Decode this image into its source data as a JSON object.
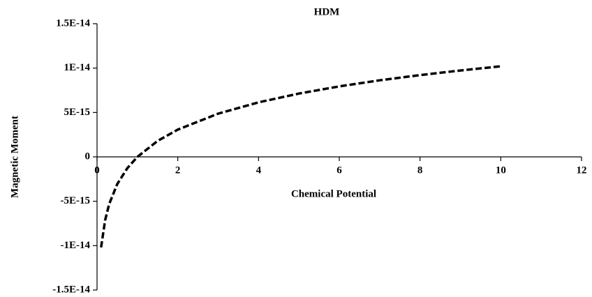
{
  "chart_data": {
    "type": "line",
    "title": "HDM",
    "xlabel": "Chemical Potential",
    "ylabel": "Magnetic Moment",
    "x": [
      0.1,
      0.2,
      0.3,
      0.5,
      0.75,
      1,
      1.5,
      2,
      3,
      4,
      5,
      6,
      7,
      8,
      9,
      10
    ],
    "values": [
      -1.02e-14,
      -7.13e-15,
      -5.33e-15,
      -3.07e-15,
      -1.27e-15,
      0,
      1.8e-15,
      3.07e-15,
      4.87e-15,
      6.14e-15,
      7.13e-15,
      7.94e-15,
      8.62e-15,
      9.21e-15,
      9.73e-15,
      1.02e-14
    ],
    "color": "#000000",
    "line_style": "dashed",
    "xlim": [
      0,
      12
    ],
    "xticks": [
      0,
      2,
      4,
      6,
      8,
      10,
      12
    ],
    "ylim": [
      -1.5e-14,
      1.5e-14
    ],
    "yticks": [
      {
        "value": -1.5e-14,
        "label": "-1.5E-14"
      },
      {
        "value": -1e-14,
        "label": "-1E-14"
      },
      {
        "value": -5e-15,
        "label": "-5E-15"
      },
      0,
      {
        "value": 5e-15,
        "label": "5E-15"
      },
      {
        "value": 1e-14,
        "label": "1E-14"
      },
      {
        "value": 1.5e-14,
        "label": "1.5E-14"
      }
    ]
  }
}
